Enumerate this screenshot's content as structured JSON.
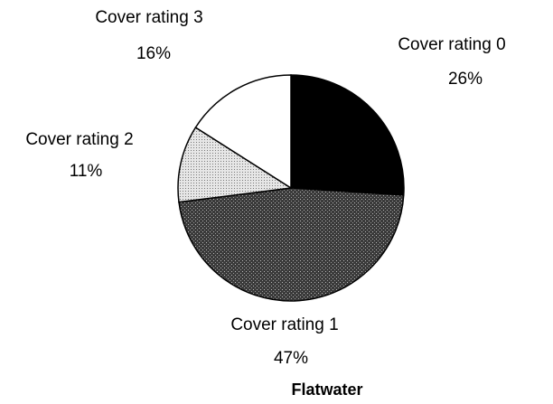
{
  "chart_data": {
    "type": "pie",
    "title": "Flatwater",
    "categories": [
      "Cover rating 0",
      "Cover rating 1",
      "Cover rating 2",
      "Cover rating 3"
    ],
    "values": [
      26,
      47,
      11,
      16
    ],
    "value_labels": [
      "26%",
      "47%",
      "11%",
      "16%"
    ],
    "colors": [
      "#000000",
      "#4d4d4d",
      "#d4d4d4",
      "#ffffff"
    ]
  }
}
